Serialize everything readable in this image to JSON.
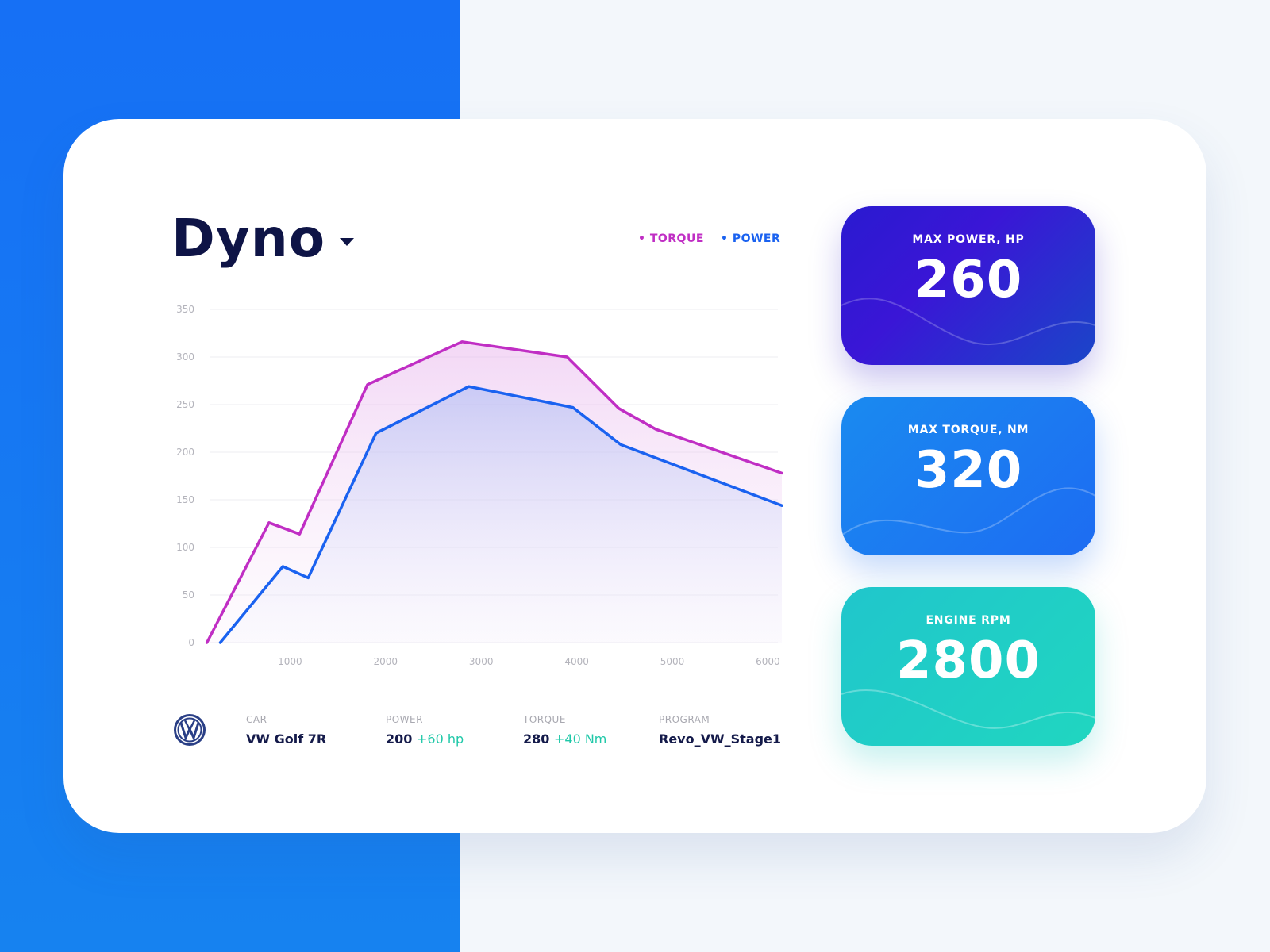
{
  "title": "Dyno",
  "legend": {
    "torque": "TORQUE",
    "power": "POWER"
  },
  "colors": {
    "torque": "#c02ec4",
    "power": "#1a62f0",
    "gain": "#1fc8a8"
  },
  "info": {
    "car_label": "CAR",
    "car_value": "VW Golf 7R",
    "power_label": "POWER",
    "power_value": "200",
    "power_gain": "+60 hp",
    "torque_label": "TORQUE",
    "torque_value": "280",
    "torque_gain": "+40 Nm",
    "program_label": "PROGRAM",
    "program_value": "Revo_VW_Stage1",
    "logo": "VW"
  },
  "stats": [
    {
      "label": "MAX POWER, HP",
      "value": "260"
    },
    {
      "label": "MAX TORQUE, NM",
      "value": "320"
    },
    {
      "label": "ENGINE RPM",
      "value": "2800"
    }
  ],
  "chart_data": {
    "type": "area",
    "xlim": [
      0,
      6150
    ],
    "ylim": [
      0,
      350
    ],
    "xticks": [
      1000,
      2000,
      3000,
      4000,
      5000,
      6000
    ],
    "yticks": [
      0,
      50,
      100,
      150,
      200,
      250,
      300,
      350
    ],
    "grid": true,
    "legend_placement": "top-right",
    "series": [
      {
        "name": "TORQUE",
        "color": "#c02ec4",
        "points": [
          [
            130,
            0
          ],
          [
            780,
            126
          ],
          [
            1100,
            114
          ],
          [
            1810,
            271
          ],
          [
            2800,
            316
          ],
          [
            3900,
            300
          ],
          [
            4440,
            246
          ],
          [
            4830,
            224
          ],
          [
            6150,
            178
          ]
        ]
      },
      {
        "name": "POWER",
        "color": "#1a62f0",
        "points": [
          [
            270,
            0
          ],
          [
            925,
            80
          ],
          [
            1190,
            68
          ],
          [
            1900,
            220
          ],
          [
            2870,
            269
          ],
          [
            3960,
            247
          ],
          [
            4460,
            208
          ],
          [
            6150,
            144
          ]
        ]
      }
    ]
  }
}
